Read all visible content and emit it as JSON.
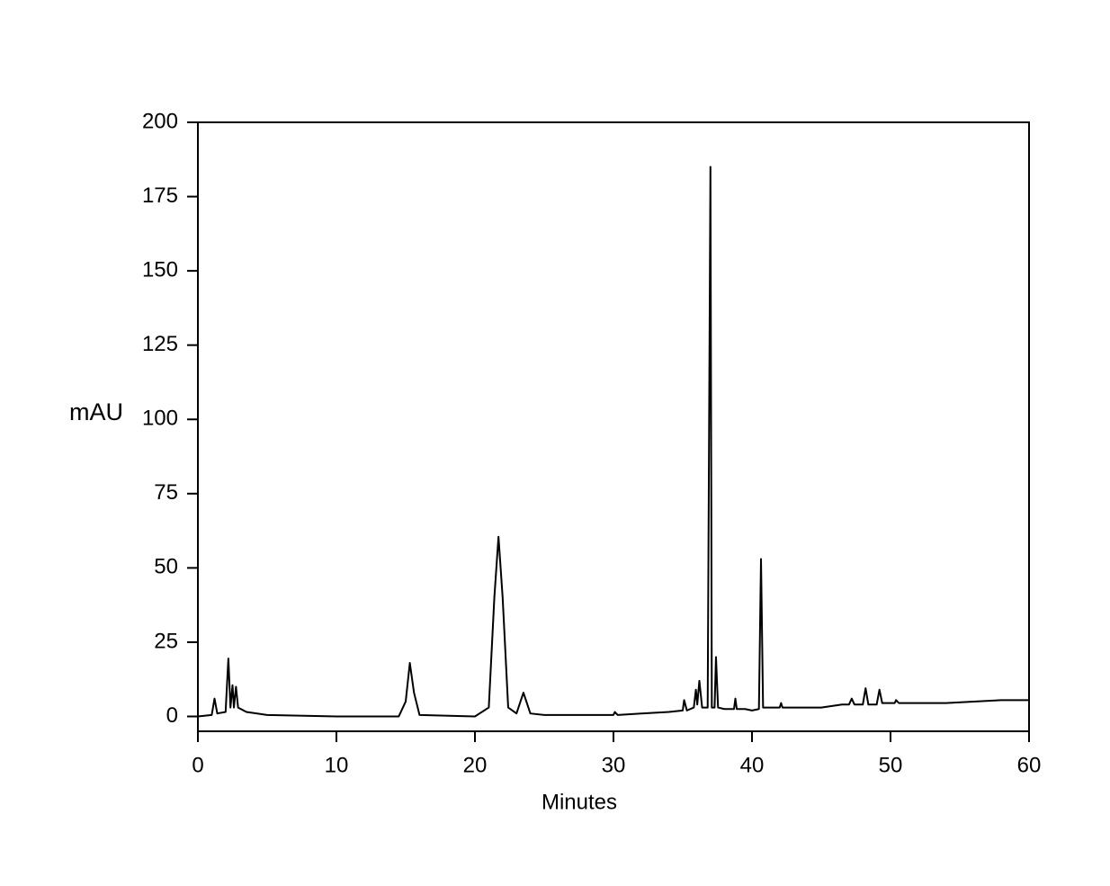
{
  "chart_data": {
    "type": "line",
    "xlabel": "Minutes",
    "ylabel": "mAU",
    "color": "#000000",
    "xlim": [
      0,
      60
    ],
    "xticks": [
      0,
      10,
      20,
      30,
      40,
      50,
      60
    ],
    "ylim": [
      -5,
      200
    ],
    "yticks": [
      0,
      25,
      50,
      75,
      100,
      125,
      150,
      175,
      200
    ],
    "x": [
      0,
      1.0,
      1.2,
      1.4,
      2.0,
      2.2,
      2.35,
      2.5,
      2.6,
      2.75,
      2.9,
      3.5,
      5,
      10,
      14.5,
      15.0,
      15.3,
      15.6,
      16,
      20,
      21.0,
      21.4,
      21.7,
      22.0,
      22.4,
      23.0,
      23.5,
      24.0,
      25,
      30,
      30.1,
      30.3,
      32,
      34,
      35,
      35.1,
      35.3,
      35.8,
      35.95,
      36.05,
      36.2,
      36.4,
      36.8,
      37.0,
      37.1,
      37.3,
      37.4,
      37.55,
      38,
      38.7,
      38.8,
      38.9,
      39.5,
      40,
      40.5,
      40.65,
      40.8,
      42.0,
      42.1,
      42.2,
      45,
      46.5,
      47,
      47.2,
      47.4,
      48.0,
      48.2,
      48.4,
      49.0,
      49.2,
      49.4,
      50.3,
      50.4,
      50.6,
      54,
      58,
      60
    ],
    "values": [
      0,
      0.5,
      6,
      1,
      1.5,
      19.5,
      3,
      10.5,
      3,
      10,
      3,
      1.5,
      0.5,
      0,
      0,
      5,
      18,
      8,
      0.5,
      0,
      3,
      40,
      60.5,
      40,
      3,
      1,
      8,
      1,
      0.5,
      0.5,
      1.5,
      0.5,
      1,
      1.5,
      2,
      5.5,
      2,
      3,
      9,
      4,
      12,
      3,
      3,
      185,
      3,
      3,
      20,
      3,
      2.5,
      2.5,
      6,
      2.5,
      2.5,
      2,
      2.5,
      53,
      3,
      3,
      4.5,
      3,
      3,
      4,
      4,
      6,
      4,
      4,
      9.5,
      4,
      4,
      9,
      4.5,
      4.5,
      5.5,
      4.5,
      4.5,
      5.5,
      5.5
    ]
  }
}
